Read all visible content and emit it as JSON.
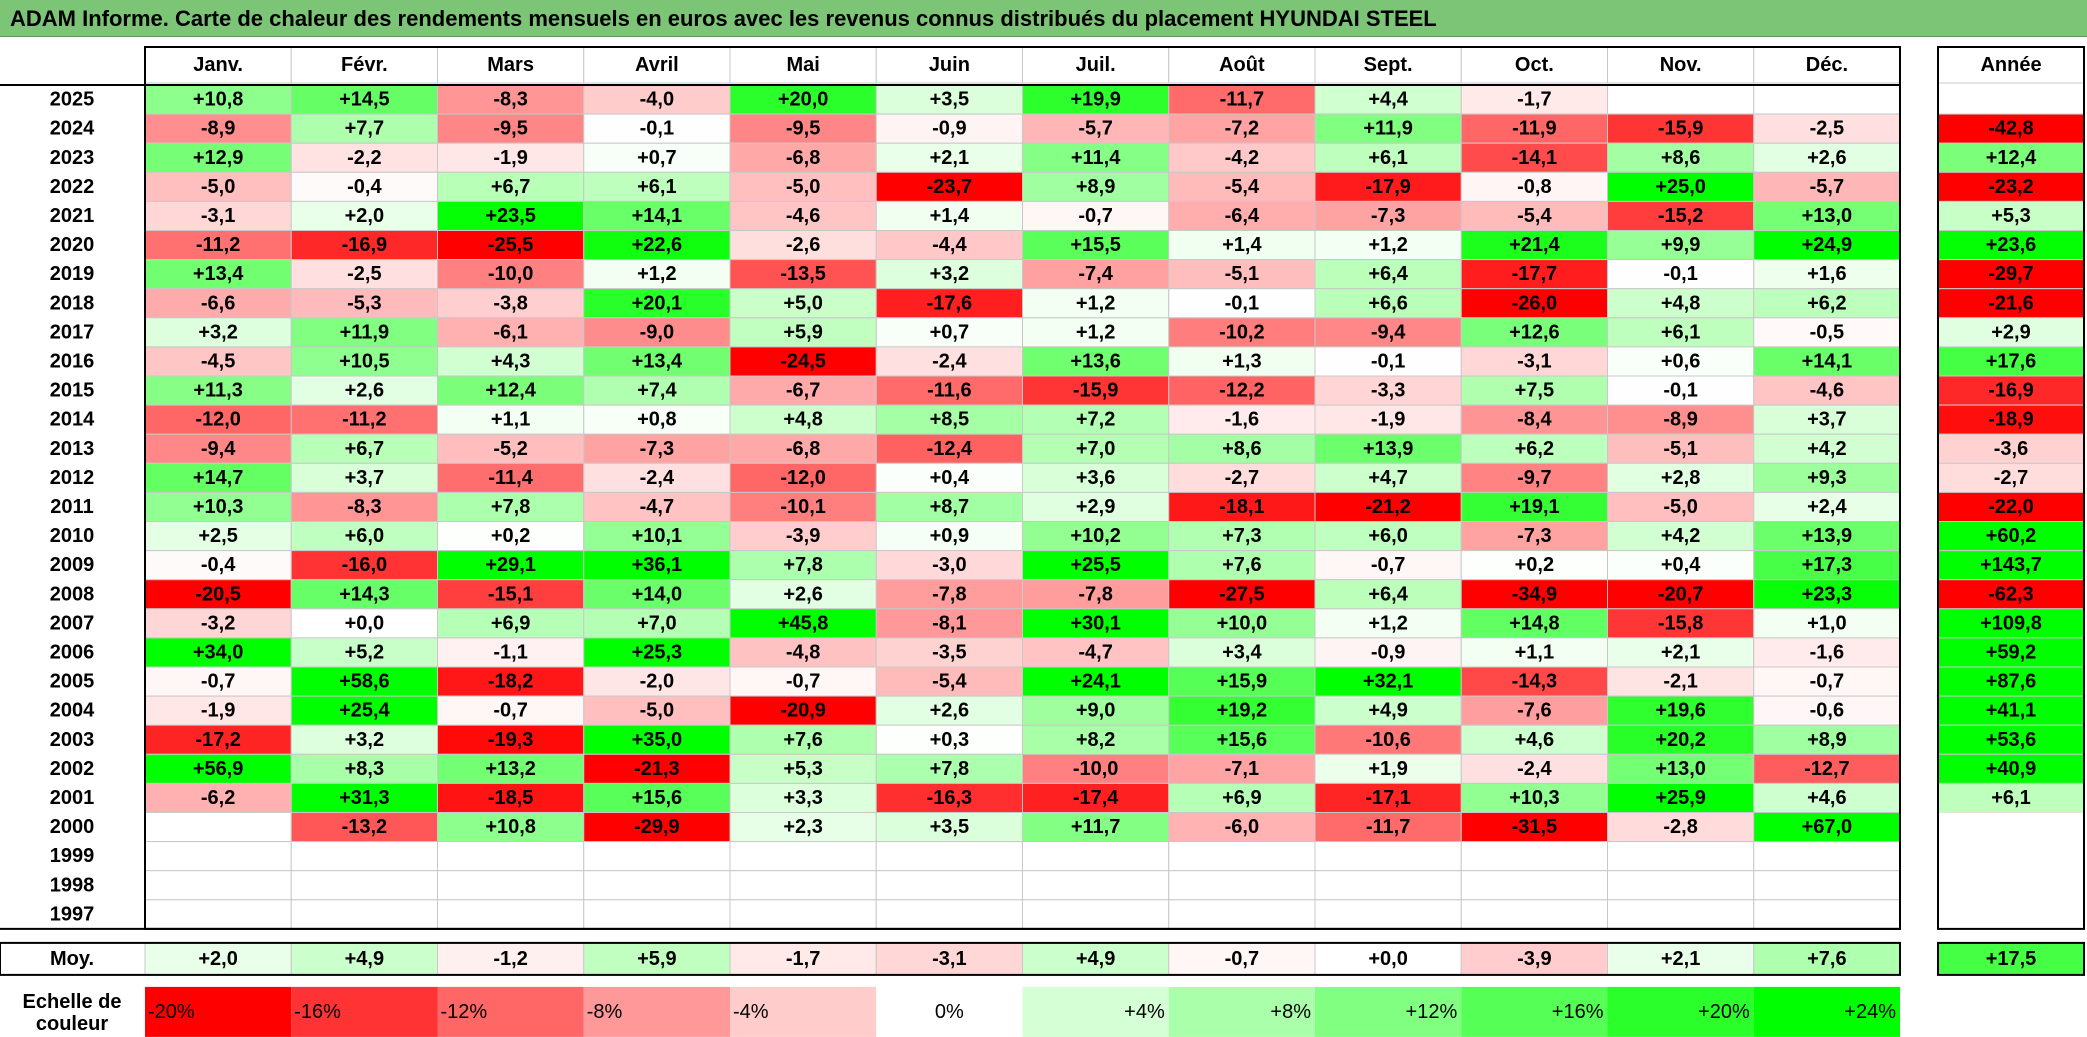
{
  "title": "ADAM Informe. Carte de chaleur des rendements mensuels en euros avec les revenus connus distribués du placement HYUNDAI STEEL",
  "chart_data": {
    "type": "heatmap",
    "title": "ADAM Informe. Carte de chaleur des rendements mensuels en euros avec les revenus connus distribués du placement HYUNDAI STEEL",
    "columns": [
      "Janv.",
      "Févr.",
      "Mars",
      "Avril",
      "Mai",
      "Juin",
      "Juil.",
      "Août",
      "Sept.",
      "Oct.",
      "Nov.",
      "Déc."
    ],
    "annual_label": "Année",
    "average_label": "Moy.",
    "rows": [
      {
        "year": "2025",
        "values": [
          10.8,
          14.5,
          -8.3,
          -4.0,
          20.0,
          3.5,
          19.9,
          -11.7,
          4.4,
          -1.7,
          null,
          null
        ],
        "annual": null
      },
      {
        "year": "2024",
        "values": [
          -8.9,
          7.7,
          -9.5,
          -0.1,
          -9.5,
          -0.9,
          -5.7,
          -7.2,
          11.9,
          -11.9,
          -15.9,
          -2.5
        ],
        "annual": -42.8
      },
      {
        "year": "2023",
        "values": [
          12.9,
          -2.2,
          -1.9,
          0.7,
          -6.8,
          2.1,
          11.4,
          -4.2,
          6.1,
          -14.1,
          8.6,
          2.6
        ],
        "annual": 12.4
      },
      {
        "year": "2022",
        "values": [
          -5.0,
          -0.4,
          6.7,
          6.1,
          -5.0,
          -23.7,
          8.9,
          -5.4,
          -17.9,
          -0.8,
          25.0,
          -5.7
        ],
        "annual": -23.2
      },
      {
        "year": "2021",
        "values": [
          -3.1,
          2.0,
          23.5,
          14.1,
          -4.6,
          1.4,
          -0.7,
          -6.4,
          -7.3,
          -5.4,
          -15.2,
          13.0
        ],
        "annual": 5.3
      },
      {
        "year": "2020",
        "values": [
          -11.2,
          -16.9,
          -25.5,
          22.6,
          -2.6,
          -4.4,
          15.5,
          1.4,
          1.2,
          21.4,
          9.9,
          24.9
        ],
        "annual": 23.6
      },
      {
        "year": "2019",
        "values": [
          13.4,
          -2.5,
          -10.0,
          1.2,
          -13.5,
          3.2,
          -7.4,
          -5.1,
          6.4,
          -17.7,
          -0.1,
          1.6
        ],
        "annual": -29.7
      },
      {
        "year": "2018",
        "values": [
          -6.6,
          -5.3,
          -3.8,
          20.1,
          5.0,
          -17.6,
          1.2,
          -0.1,
          6.6,
          -26.0,
          4.8,
          6.2
        ],
        "annual": -21.6
      },
      {
        "year": "2017",
        "values": [
          3.2,
          11.9,
          -6.1,
          -9.0,
          5.9,
          0.7,
          1.2,
          -10.2,
          -9.4,
          12.6,
          6.1,
          -0.5
        ],
        "annual": 2.9
      },
      {
        "year": "2016",
        "values": [
          -4.5,
          10.5,
          4.3,
          13.4,
          -24.5,
          -2.4,
          13.6,
          1.3,
          -0.1,
          -3.1,
          0.6,
          14.1
        ],
        "annual": 17.6
      },
      {
        "year": "2015",
        "values": [
          11.3,
          2.6,
          12.4,
          7.4,
          -6.7,
          -11.6,
          -15.9,
          -12.2,
          -3.3,
          7.5,
          -0.1,
          -4.6
        ],
        "annual": -16.9
      },
      {
        "year": "2014",
        "values": [
          -12.0,
          -11.2,
          1.1,
          0.8,
          4.8,
          8.5,
          7.2,
          -1.6,
          -1.9,
          -8.4,
          -8.9,
          3.7
        ],
        "annual": -18.9
      },
      {
        "year": "2013",
        "values": [
          -9.4,
          6.7,
          -5.2,
          -7.3,
          -6.8,
          -12.4,
          7.0,
          8.6,
          13.9,
          6.2,
          -5.1,
          4.2
        ],
        "annual": -3.6
      },
      {
        "year": "2012",
        "values": [
          14.7,
          3.7,
          -11.4,
          -2.4,
          -12.0,
          0.4,
          3.6,
          -2.7,
          4.7,
          -9.7,
          2.8,
          9.3
        ],
        "annual": -2.7
      },
      {
        "year": "2011",
        "values": [
          10.3,
          -8.3,
          7.8,
          -4.7,
          -10.1,
          8.7,
          2.9,
          -18.1,
          -21.2,
          19.1,
          -5.0,
          2.4
        ],
        "annual": -22.0
      },
      {
        "year": "2010",
        "values": [
          2.5,
          6.0,
          0.2,
          10.1,
          -3.9,
          0.9,
          10.2,
          7.3,
          6.0,
          -7.3,
          4.2,
          13.9
        ],
        "annual": 60.2
      },
      {
        "year": "2009",
        "values": [
          -0.4,
          -16.0,
          29.1,
          36.1,
          7.8,
          -3.0,
          25.5,
          7.6,
          -0.7,
          0.2,
          0.4,
          17.3
        ],
        "annual": 143.7
      },
      {
        "year": "2008",
        "values": [
          -20.5,
          14.3,
          -15.1,
          14.0,
          2.6,
          -7.8,
          -7.8,
          -27.5,
          6.4,
          -34.9,
          -20.7,
          23.3
        ],
        "annual": -62.3
      },
      {
        "year": "2007",
        "values": [
          -3.2,
          0.0,
          6.9,
          7.0,
          45.8,
          -8.1,
          30.1,
          10.0,
          1.2,
          14.8,
          -15.8,
          1.0
        ],
        "annual": 109.8
      },
      {
        "year": "2006",
        "values": [
          34.0,
          5.2,
          -1.1,
          25.3,
          -4.8,
          -3.5,
          -4.7,
          3.4,
          -0.9,
          1.1,
          2.1,
          -1.6
        ],
        "annual": 59.2
      },
      {
        "year": "2005",
        "values": [
          -0.7,
          58.6,
          -18.2,
          -2.0,
          -0.7,
          -5.4,
          24.1,
          15.9,
          32.1,
          -14.3,
          -2.1,
          -0.7
        ],
        "annual": 87.6
      },
      {
        "year": "2004",
        "values": [
          -1.9,
          25.4,
          -0.7,
          -5.0,
          -20.9,
          2.6,
          9.0,
          19.2,
          4.9,
          -7.6,
          19.6,
          -0.6
        ],
        "annual": 41.1
      },
      {
        "year": "2003",
        "values": [
          -17.2,
          3.2,
          -19.3,
          35.0,
          7.6,
          0.3,
          8.2,
          15.6,
          -10.6,
          4.6,
          20.2,
          8.9
        ],
        "annual": 53.6
      },
      {
        "year": "2002",
        "values": [
          56.9,
          8.3,
          13.2,
          -21.3,
          5.3,
          7.8,
          -10.0,
          -7.1,
          1.9,
          -2.4,
          13.0,
          -12.7
        ],
        "annual": 40.9
      },
      {
        "year": "2001",
        "values": [
          -6.2,
          31.3,
          -18.5,
          15.6,
          3.3,
          -16.3,
          -17.4,
          6.9,
          -17.1,
          10.3,
          25.9,
          4.6
        ],
        "annual": 6.1
      },
      {
        "year": "2000",
        "values": [
          null,
          -13.2,
          10.8,
          -29.9,
          2.3,
          3.5,
          11.7,
          -6.0,
          -11.7,
          -31.5,
          -2.8,
          67.0
        ],
        "annual": null
      },
      {
        "year": "1999",
        "values": [
          null,
          null,
          null,
          null,
          null,
          null,
          null,
          null,
          null,
          null,
          null,
          null
        ],
        "annual": null
      },
      {
        "year": "1998",
        "values": [
          null,
          null,
          null,
          null,
          null,
          null,
          null,
          null,
          null,
          null,
          null,
          null
        ],
        "annual": null
      },
      {
        "year": "1997",
        "values": [
          null,
          null,
          null,
          null,
          null,
          null,
          null,
          null,
          null,
          null,
          null,
          null
        ],
        "annual": null
      }
    ],
    "averages": [
      2.0,
      4.9,
      -1.2,
      5.9,
      -1.7,
      -3.1,
      4.9,
      -0.7,
      0.0,
      -3.9,
      2.1,
      7.6
    ],
    "annual_average": 17.5,
    "color_scale": {
      "label": "Echelle de couleur",
      "stops": [
        "-20%",
        "-16%",
        "-12%",
        "-8%",
        "-4%",
        "0%",
        "+4%",
        "+8%",
        "+12%",
        "+16%",
        "+20%",
        "+24%"
      ],
      "stop_values": [
        -20,
        -16,
        -12,
        -8,
        -4,
        0,
        4,
        8,
        12,
        16,
        20,
        24
      ],
      "negative_color": "#ff0000",
      "neutral_color": "#ffffff",
      "positive_color": "#00ff00"
    }
  }
}
